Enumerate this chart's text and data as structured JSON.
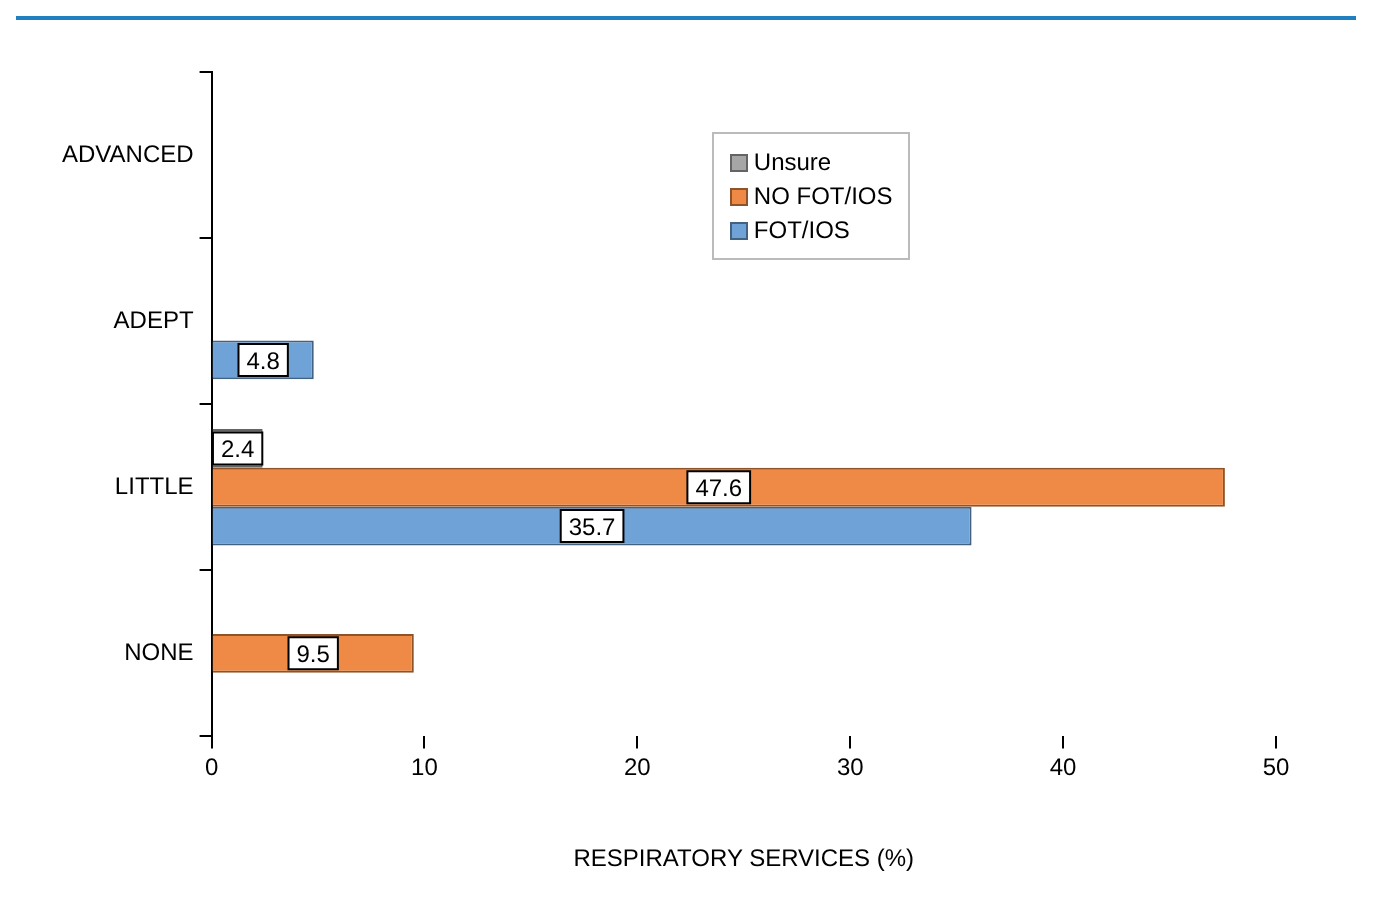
{
  "chart_data": {
    "type": "bar",
    "orientation": "horizontal",
    "xlabel": "RESPIRATORY SERVICES (%)",
    "categories": [
      "ADVANCED",
      "ADEPT",
      "LITTLE",
      "NONE"
    ],
    "series": [
      {
        "name": "Unsure",
        "color": "#a6a6a6",
        "values": [
          null,
          null,
          2.4,
          null
        ]
      },
      {
        "name": "NO FOT/IOS",
        "color": "#ee8a45",
        "values": [
          null,
          null,
          47.6,
          9.5
        ]
      },
      {
        "name": "FOT/IOS",
        "color": "#6fa3d8",
        "values": [
          null,
          4.8,
          35.7,
          null
        ]
      }
    ],
    "xlim": [
      0,
      50
    ],
    "xticks": [
      0,
      10,
      20,
      30,
      40,
      50
    ],
    "grid": false,
    "legend": "top right",
    "data_labels": true
  }
}
